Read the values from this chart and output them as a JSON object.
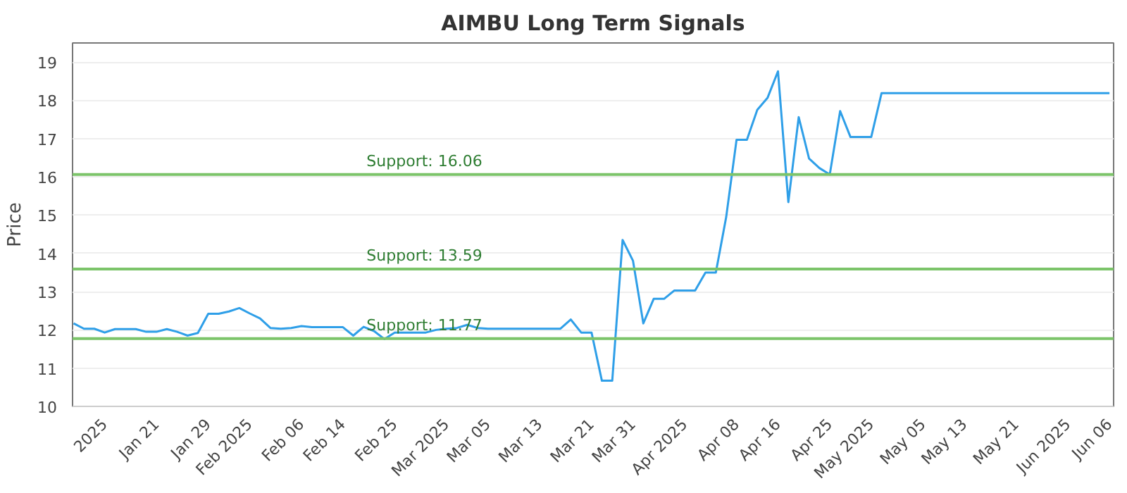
{
  "chart_data": {
    "type": "line",
    "title": "AIMBU Long Term Signals",
    "ylabel": "Price",
    "categories": [
      null,
      null,
      null,
      "2025",
      null,
      null,
      null,
      null,
      "Jan 21",
      null,
      null,
      null,
      null,
      "Jan 29",
      null,
      null,
      null,
      "Feb 2025",
      null,
      null,
      null,
      null,
      "Feb 06",
      null,
      null,
      null,
      "Feb 14",
      null,
      null,
      null,
      null,
      "Feb 25",
      null,
      null,
      null,
      null,
      "Mar 2025",
      null,
      null,
      null,
      "Mar 05",
      null,
      null,
      null,
      null,
      "Mar 13",
      null,
      null,
      null,
      null,
      "Mar 21",
      null,
      null,
      null,
      "Mar 31",
      null,
      null,
      null,
      null,
      "Apr 2025",
      null,
      null,
      null,
      null,
      "Apr 08",
      null,
      null,
      null,
      "Apr 16",
      null,
      null,
      null,
      null,
      "Apr 25",
      null,
      null,
      null,
      "May 2025",
      null,
      null,
      null,
      null,
      "May 05",
      null,
      null,
      null,
      "May 13",
      null,
      null,
      null,
      null,
      "May 21",
      null,
      null,
      null,
      null,
      "Jun 2025",
      null,
      null,
      null,
      "Jun 06"
    ],
    "series": [
      {
        "color": "#2f9fe8",
        "values": [
          12.17,
          12.03,
          12.03,
          11.93,
          12.02,
          12.02,
          12.02,
          11.95,
          11.95,
          12.02,
          11.95,
          11.85,
          11.92,
          12.42,
          12.42,
          12.48,
          12.57,
          12.43,
          12.3,
          12.05,
          12.03,
          12.05,
          12.1,
          12.07,
          12.07,
          12.07,
          12.07,
          11.85,
          12.08,
          11.97,
          11.76,
          11.93,
          11.93,
          11.93,
          11.93,
          12.0,
          12.03,
          12.05,
          12.13,
          12.05,
          12.03,
          12.03,
          12.03,
          12.03,
          12.03,
          12.03,
          12.03,
          12.03,
          12.27,
          11.93,
          11.93,
          10.67,
          10.67,
          14.35,
          13.81,
          12.17,
          12.81,
          12.81,
          13.03,
          13.03,
          13.03,
          13.5,
          13.5,
          14.95,
          16.97,
          16.97,
          17.75,
          18.07,
          18.76,
          15.34,
          17.56,
          16.48,
          16.23,
          16.06,
          17.72,
          17.04,
          17.04,
          17.04,
          18.19,
          18.19,
          18.19,
          18.19,
          18.19,
          18.19,
          18.19,
          18.19,
          18.19,
          18.19,
          18.19,
          18.19,
          18.19,
          18.19,
          18.19,
          18.19,
          18.19,
          18.19,
          18.19,
          18.19,
          18.19,
          18.19,
          18.19
        ]
      }
    ],
    "ylim": [
      10,
      19.5
    ],
    "yticks": [
      10,
      11,
      12,
      13,
      14,
      15,
      16,
      17,
      18,
      19
    ],
    "grid": "y",
    "marker": "none",
    "line_style": "solid",
    "ref_lines": [
      {
        "axis": "y",
        "value": 16.06,
        "label": "Support: 16.06",
        "color": "#7cc46a"
      },
      {
        "axis": "y",
        "value": 13.59,
        "label": "Support: 13.59",
        "color": "#7cc46a"
      },
      {
        "axis": "y",
        "value": 11.77,
        "label": "Support: 11.77",
        "color": "#7cc46a"
      }
    ]
  }
}
